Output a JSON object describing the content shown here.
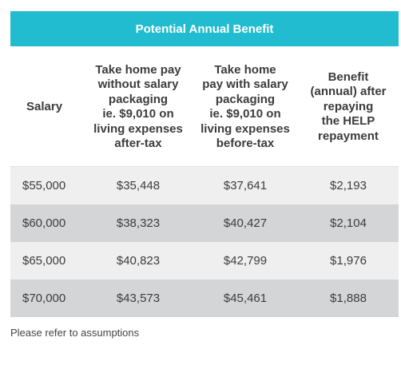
{
  "title": "Potential Annual Benefit",
  "headers": [
    [
      "Salary"
    ],
    [
      "Take home pay",
      "without salary",
      "packaging",
      "ie. $9,010 on",
      "living expenses",
      "after-tax"
    ],
    [
      "Take home",
      "pay with salary",
      "packaging",
      "ie. $9,010 on",
      "living expenses",
      "before-tax"
    ],
    [
      "Benefit",
      "(annual) after",
      "repaying",
      "the HELP",
      "repayment"
    ]
  ],
  "rows": [
    [
      "$55,000",
      "$35,448",
      "$37,641",
      "$2,193"
    ],
    [
      "$60,000",
      "$38,323",
      "$40,427",
      "$2,104"
    ],
    [
      "$65,000",
      "$40,823",
      "$42,799",
      "$1,976"
    ],
    [
      "$70,000",
      "$43,573",
      "$45,461",
      "$1,888"
    ]
  ],
  "footnote": "Please refer to assumptions",
  "colors": {
    "title_bar": "#21bccf",
    "row_light": "#efefef",
    "row_dark": "#d4d5d6",
    "text": "#3c3c3c"
  }
}
